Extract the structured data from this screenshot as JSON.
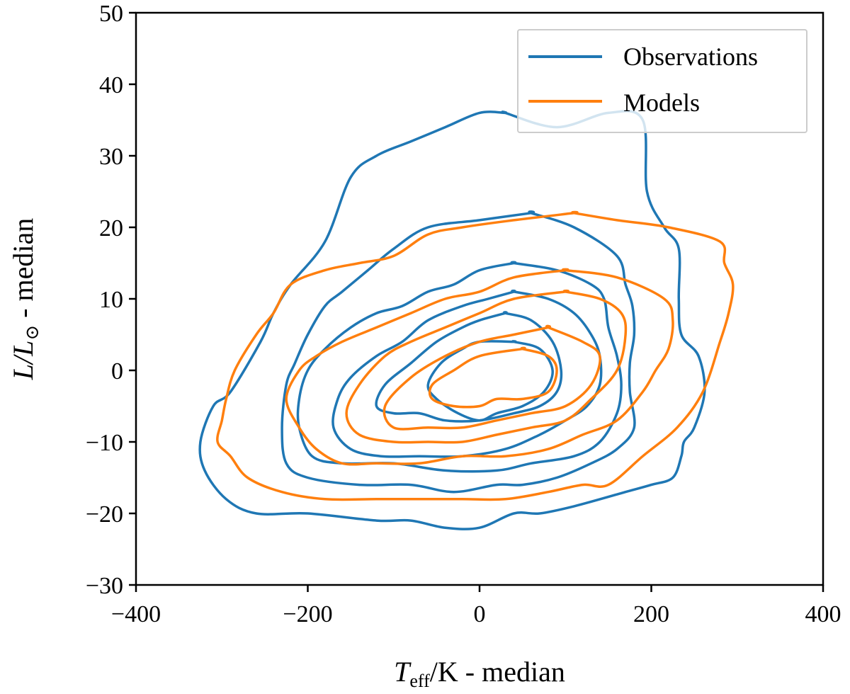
{
  "chart_data": {
    "type": "contour",
    "xlabel": {
      "main": "T",
      "sub": "eff",
      "rest": "/K - median"
    },
    "ylabel": {
      "main": "L/L",
      "sub": "⊙",
      "rest": " - median"
    },
    "xlim": [
      -400,
      400
    ],
    "ylim": [
      -30,
      50
    ],
    "xticks": [
      -400,
      -200,
      0,
      200,
      400
    ],
    "yticks": [
      -30,
      -20,
      -10,
      0,
      10,
      20,
      30,
      40,
      50
    ],
    "xtick_labels": [
      "−400",
      "−200",
      "0",
      "200",
      "400"
    ],
    "ytick_labels": [
      "−30",
      "−20",
      "−10",
      "0",
      "10",
      "20",
      "30",
      "40",
      "50"
    ],
    "grid": false,
    "legend_position": "top-right",
    "series": [
      {
        "name": "Observations",
        "color": "#1f77b4",
        "contours": [
          [
            [
              30,
              36
            ],
            [
              90,
              34
            ],
            [
              150,
              36
            ],
            [
              190,
              35
            ],
            [
              195,
              25
            ],
            [
              215,
              20
            ],
            [
              232,
              17
            ],
            [
              232,
              10
            ],
            [
              235,
              5
            ],
            [
              255,
              2
            ],
            [
              262,
              -3
            ],
            [
              250,
              -8
            ],
            [
              238,
              -10
            ],
            [
              235,
              -12
            ],
            [
              225,
              -15
            ],
            [
              200,
              -16
            ],
            [
              170,
              -17
            ],
            [
              110,
              -19
            ],
            [
              70,
              -20
            ],
            [
              40,
              -20
            ],
            [
              0,
              -22
            ],
            [
              -40,
              -22
            ],
            [
              -80,
              -21
            ],
            [
              -120,
              -21
            ],
            [
              -200,
              -20
            ],
            [
              -260,
              -20
            ],
            [
              -295,
              -18
            ],
            [
              -320,
              -14
            ],
            [
              -325,
              -10
            ],
            [
              -310,
              -5
            ],
            [
              -290,
              -3
            ],
            [
              -255,
              4
            ],
            [
              -240,
              8
            ],
            [
              -220,
              12
            ],
            [
              -180,
              18
            ],
            [
              -150,
              27
            ],
            [
              -120,
              30
            ],
            [
              -80,
              32
            ],
            [
              -40,
              34
            ],
            [
              0,
              36
            ],
            [
              30,
              36
            ]
          ],
          [
            [
              60,
              22
            ],
            [
              110,
              20
            ],
            [
              160,
              16
            ],
            [
              170,
              12
            ],
            [
              178,
              9
            ],
            [
              180,
              5
            ],
            [
              175,
              1
            ],
            [
              175,
              -3
            ],
            [
              180,
              -8
            ],
            [
              160,
              -11
            ],
            [
              130,
              -13
            ],
            [
              90,
              -15
            ],
            [
              50,
              -16
            ],
            [
              20,
              -16
            ],
            [
              -30,
              -17
            ],
            [
              -80,
              -16
            ],
            [
              -140,
              -16
            ],
            [
              -200,
              -15
            ],
            [
              -225,
              -13
            ],
            [
              -230,
              -8
            ],
            [
              -225,
              -2
            ],
            [
              -215,
              1
            ],
            [
              -200,
              5
            ],
            [
              -180,
              9
            ],
            [
              -160,
              11
            ],
            [
              -130,
              14
            ],
            [
              -100,
              17
            ],
            [
              -60,
              20
            ],
            [
              0,
              21
            ],
            [
              60,
              22
            ]
          ],
          [
            [
              40,
              15
            ],
            [
              90,
              14
            ],
            [
              130,
              12
            ],
            [
              145,
              10
            ],
            [
              150,
              6
            ],
            [
              160,
              2
            ],
            [
              165,
              -2
            ],
            [
              160,
              -6
            ],
            [
              140,
              -10
            ],
            [
              110,
              -12
            ],
            [
              60,
              -13
            ],
            [
              20,
              -14
            ],
            [
              -40,
              -14
            ],
            [
              -100,
              -13
            ],
            [
              -160,
              -13
            ],
            [
              -195,
              -12
            ],
            [
              -210,
              -8
            ],
            [
              -210,
              -4
            ],
            [
              -200,
              0
            ],
            [
              -180,
              3
            ],
            [
              -150,
              6
            ],
            [
              -120,
              8
            ],
            [
              -90,
              9
            ],
            [
              -60,
              11
            ],
            [
              -30,
              12
            ],
            [
              0,
              14
            ],
            [
              40,
              15
            ]
          ],
          [
            [
              40,
              11
            ],
            [
              80,
              10
            ],
            [
              110,
              8
            ],
            [
              130,
              5
            ],
            [
              140,
              2
            ],
            [
              140,
              -2
            ],
            [
              125,
              -5
            ],
            [
              100,
              -7
            ],
            [
              70,
              -9
            ],
            [
              30,
              -11
            ],
            [
              -20,
              -12
            ],
            [
              -70,
              -12
            ],
            [
              -115,
              -12
            ],
            [
              -150,
              -11
            ],
            [
              -170,
              -8
            ],
            [
              -165,
              -4
            ],
            [
              -150,
              -1
            ],
            [
              -120,
              2
            ],
            [
              -90,
              4
            ],
            [
              -60,
              7
            ],
            [
              -20,
              9
            ],
            [
              10,
              10
            ],
            [
              40,
              11
            ]
          ],
          [
            [
              30,
              8
            ],
            [
              60,
              7
            ],
            [
              85,
              4
            ],
            [
              95,
              0
            ],
            [
              90,
              -3
            ],
            [
              70,
              -5
            ],
            [
              40,
              -6
            ],
            [
              0,
              -7
            ],
            [
              -40,
              -7
            ],
            [
              -70,
              -6
            ],
            [
              -100,
              -6
            ],
            [
              -120,
              -5
            ],
            [
              -110,
              -2
            ],
            [
              -80,
              1
            ],
            [
              -50,
              4
            ],
            [
              -20,
              6
            ],
            [
              0,
              7
            ],
            [
              30,
              8
            ]
          ],
          [
            [
              40,
              4
            ],
            [
              70,
              3
            ],
            [
              85,
              0
            ],
            [
              75,
              -3
            ],
            [
              50,
              -5
            ],
            [
              20,
              -6
            ],
            [
              0,
              -7
            ],
            [
              -25,
              -6
            ],
            [
              -50,
              -4
            ],
            [
              -60,
              -2
            ],
            [
              -45,
              1
            ],
            [
              -20,
              3
            ],
            [
              0,
              4
            ],
            [
              40,
              4
            ]
          ]
        ]
      },
      {
        "name": "Models",
        "color": "#ff7f0e",
        "contours": [
          [
            [
              110,
              22
            ],
            [
              160,
              21
            ],
            [
              220,
              20
            ],
            [
              280,
              18
            ],
            [
              285,
              15
            ],
            [
              295,
              12
            ],
            [
              290,
              8
            ],
            [
              280,
              4
            ],
            [
              260,
              -3
            ],
            [
              230,
              -8
            ],
            [
              190,
              -12
            ],
            [
              150,
              -16
            ],
            [
              120,
              -16
            ],
            [
              80,
              -17
            ],
            [
              30,
              -18
            ],
            [
              -20,
              -18
            ],
            [
              -70,
              -18
            ],
            [
              -120,
              -18
            ],
            [
              -180,
              -18
            ],
            [
              -230,
              -17
            ],
            [
              -270,
              -15
            ],
            [
              -290,
              -12
            ],
            [
              -305,
              -10
            ],
            [
              -300,
              -7
            ],
            [
              -295,
              -4
            ],
            [
              -285,
              0
            ],
            [
              -260,
              5
            ],
            [
              -240,
              8
            ],
            [
              -220,
              12
            ],
            [
              -180,
              14
            ],
            [
              -140,
              15
            ],
            [
              -100,
              16
            ],
            [
              -60,
              19
            ],
            [
              -20,
              20
            ],
            [
              40,
              21
            ],
            [
              110,
              22
            ]
          ],
          [
            [
              100,
              14
            ],
            [
              160,
              13
            ],
            [
              215,
              10
            ],
            [
              225,
              7
            ],
            [
              220,
              3
            ],
            [
              205,
              0
            ],
            [
              190,
              -3
            ],
            [
              160,
              -7
            ],
            [
              120,
              -9
            ],
            [
              80,
              -11
            ],
            [
              30,
              -12
            ],
            [
              -20,
              -12
            ],
            [
              -70,
              -13
            ],
            [
              -120,
              -13
            ],
            [
              -160,
              -13
            ],
            [
              -190,
              -11
            ],
            [
              -210,
              -8
            ],
            [
              -225,
              -4
            ],
            [
              -210,
              0
            ],
            [
              -190,
              2
            ],
            [
              -160,
              4
            ],
            [
              -120,
              6
            ],
            [
              -80,
              8
            ],
            [
              -40,
              10
            ],
            [
              0,
              11
            ],
            [
              40,
              13
            ],
            [
              100,
              14
            ]
          ],
          [
            [
              100,
              11
            ],
            [
              140,
              10
            ],
            [
              165,
              8
            ],
            [
              170,
              5
            ],
            [
              160,
              0
            ],
            [
              130,
              -4
            ],
            [
              100,
              -7
            ],
            [
              60,
              -8
            ],
            [
              20,
              -9
            ],
            [
              -20,
              -10
            ],
            [
              -60,
              -10
            ],
            [
              -100,
              -10
            ],
            [
              -140,
              -9
            ],
            [
              -155,
              -6
            ],
            [
              -140,
              -2
            ],
            [
              -110,
              2
            ],
            [
              -80,
              4
            ],
            [
              -40,
              6
            ],
            [
              0,
              8
            ],
            [
              40,
              10
            ],
            [
              100,
              11
            ]
          ],
          [
            [
              80,
              6
            ],
            [
              120,
              4
            ],
            [
              140,
              2
            ],
            [
              130,
              -2
            ],
            [
              100,
              -5
            ],
            [
              60,
              -6
            ],
            [
              20,
              -7
            ],
            [
              -20,
              -8
            ],
            [
              -60,
              -8
            ],
            [
              -100,
              -8
            ],
            [
              -110,
              -5
            ],
            [
              -80,
              -1
            ],
            [
              -40,
              2
            ],
            [
              0,
              4
            ],
            [
              40,
              5
            ],
            [
              80,
              6
            ]
          ],
          [
            [
              50,
              3
            ],
            [
              80,
              2
            ],
            [
              90,
              0
            ],
            [
              80,
              -3
            ],
            [
              50,
              -4
            ],
            [
              20,
              -4
            ],
            [
              0,
              -5
            ],
            [
              -30,
              -5
            ],
            [
              -55,
              -4
            ],
            [
              -55,
              -2
            ],
            [
              -30,
              0
            ],
            [
              0,
              2
            ],
            [
              50,
              3
            ]
          ]
        ]
      }
    ]
  }
}
